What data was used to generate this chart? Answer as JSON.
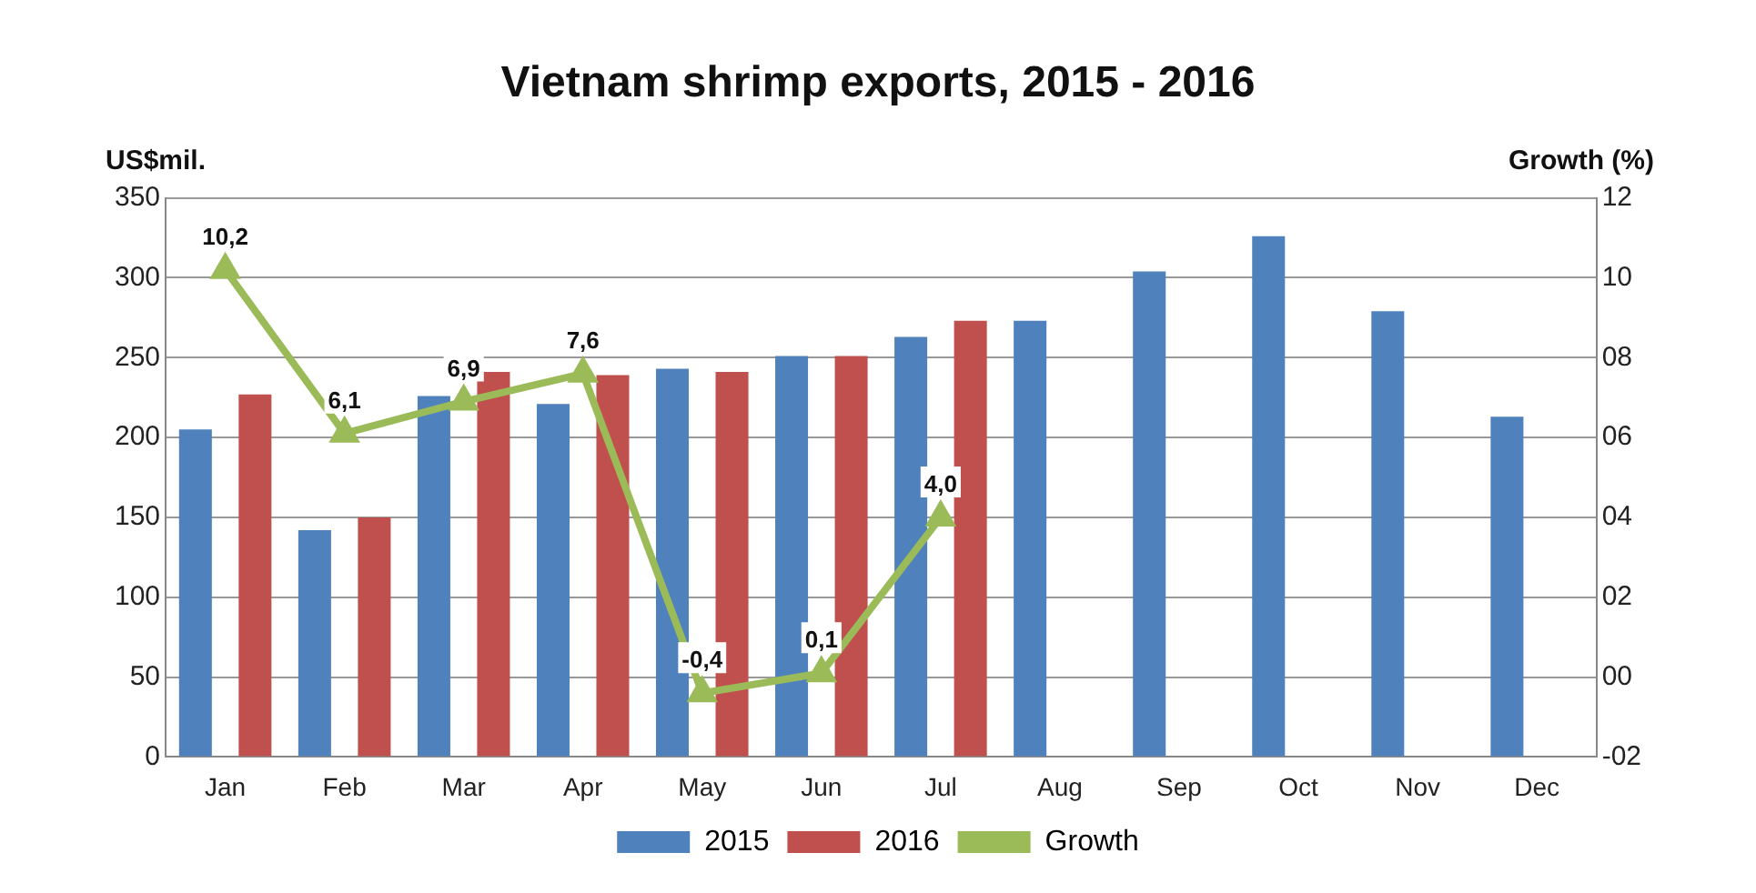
{
  "chart_data": {
    "type": "bar",
    "title": "Vietnam shrimp exports, 2015 - 2016",
    "ylabel": "US$mil.",
    "y2label": "Growth (%)",
    "categories": [
      "Jan",
      "Feb",
      "Mar",
      "Apr",
      "May",
      "Jun",
      "Jul",
      "Aug",
      "Sep",
      "Oct",
      "Nov",
      "Dec"
    ],
    "series": [
      {
        "name": "2015",
        "color": "#4f81bd",
        "values": [
          205,
          142,
          226,
          221,
          243,
          251,
          263,
          273,
          304,
          326,
          279,
          213
        ]
      },
      {
        "name": "2016",
        "color": "#c0504d",
        "values": [
          227,
          150,
          241,
          239,
          241,
          251,
          273,
          null,
          null,
          null,
          null,
          null
        ]
      },
      {
        "name": "Growth",
        "type": "line",
        "axis": "y2",
        "color": "#9bbb59",
        "marker": "triangle",
        "values": [
          10.2,
          6.1,
          6.9,
          7.6,
          -0.4,
          0.1,
          4.0,
          null,
          null,
          null,
          null,
          null
        ],
        "value_labels": [
          "10,2",
          "6,1",
          "6,9",
          "7,6",
          "-0,4",
          "0,1",
          "4,0",
          null,
          null,
          null,
          null,
          null
        ]
      }
    ],
    "ylim": [
      0,
      350
    ],
    "yticks": [
      0,
      50,
      100,
      150,
      200,
      250,
      300,
      350
    ],
    "y2lim": [
      -2,
      12
    ],
    "y2ticks": [
      {
        "value": -2,
        "label": "-02"
      },
      {
        "value": 0,
        "label": "00"
      },
      {
        "value": 2,
        "label": "02"
      },
      {
        "value": 4,
        "label": "04"
      },
      {
        "value": 6,
        "label": "06"
      },
      {
        "value": 8,
        "label": "08"
      },
      10,
      12
    ],
    "grid": "y",
    "legend": "bottom"
  }
}
